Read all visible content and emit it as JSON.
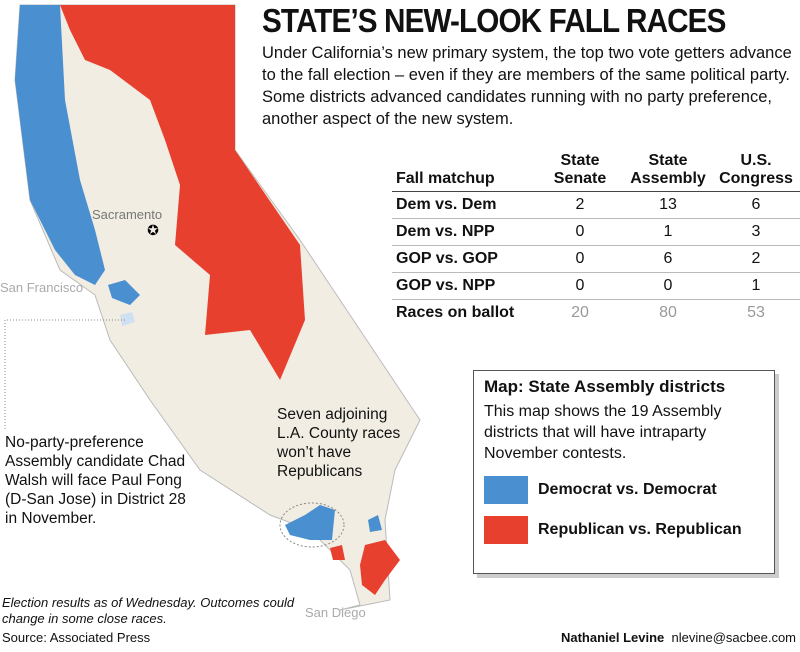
{
  "title": "STATE’S NEW-LOOK FALL RACES",
  "intro": "Under California’s new primary system, the top two vote getters advance to the fall election – even if they are members of the same political party. Some districts advanced candidates running with no party preference, another aspect of the new system.",
  "table": {
    "header": [
      "Fall matchup",
      "State Senate",
      "State Assembly",
      "U.S. Congress"
    ],
    "rows": [
      [
        "Dem vs. Dem",
        2,
        13,
        6
      ],
      [
        "Dem vs. NPP",
        0,
        1,
        3
      ],
      [
        "GOP vs. GOP",
        0,
        6,
        2
      ],
      [
        "GOP vs. NPP",
        0,
        0,
        1
      ],
      [
        "Races on ballot",
        20,
        80,
        53
      ]
    ]
  },
  "map": {
    "labels": {
      "sacramento": "Sacramento",
      "san_francisco": "San Francisco",
      "san_diego": "San Diego"
    },
    "la_note": "Seven adjoining L.A. County races won’t have Republicans",
    "walsh_note": "No-party-preference Assembly candidate Chad Walsh will face Paul Fong (D-San Jose) in District 28 in November."
  },
  "legend": {
    "title": "Map: State Assembly districts",
    "text": "This map shows the 19 Assembly districts that will have intraparty November contests.",
    "items": [
      {
        "label": "Democrat vs. Democrat",
        "color": "#4a8fcf"
      },
      {
        "label": "Republican vs. Republican",
        "color": "#e8402f"
      }
    ]
  },
  "footer": {
    "note": "Election results as of Wednesday. Outcomes could change in some close races.",
    "source": "Source: Associated Press",
    "author": "Nathaniel Levine",
    "email": "nlevine@sacbee.com"
  }
}
